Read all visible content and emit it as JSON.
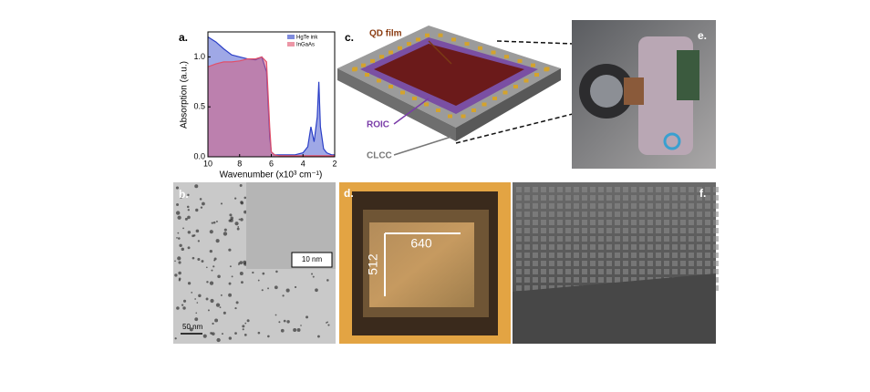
{
  "chart_data": {
    "type": "area",
    "x_label": "Wavenumber (x10³ cm⁻¹)",
    "y_label": "Absorption (a.u.)",
    "x": [
      10,
      9.5,
      9,
      8.5,
      8,
      7.5,
      7,
      6.6,
      6.3,
      6.1,
      6,
      5.8,
      5.5,
      5,
      4.5,
      4,
      3.7,
      3.5,
      3.3,
      3.1,
      3,
      2.9,
      2.7,
      2.5,
      2.2,
      2
    ],
    "series": [
      {
        "name": "HgTe ink",
        "color": "#2b3fc7",
        "values": [
          1.2,
          1.15,
          1.08,
          1.02,
          1.0,
          0.98,
          0.97,
          1.0,
          0.85,
          0.2,
          0.05,
          0.02,
          0.02,
          0.02,
          0.02,
          0.04,
          0.1,
          0.3,
          0.15,
          0.4,
          0.75,
          0.3,
          0.08,
          0.04,
          0.02,
          0.02
        ]
      },
      {
        "name": "InGaAs",
        "color": "#e0506a",
        "values": [
          0.9,
          0.93,
          0.95,
          0.95,
          0.96,
          0.98,
          0.98,
          1.0,
          0.95,
          0.3,
          0.05,
          0.02,
          0.01,
          0.01,
          0.01,
          0.01,
          0.01,
          0.01,
          0.01,
          0.01,
          0.01,
          0.01,
          0.01,
          0.01,
          0.01,
          0.01
        ]
      }
    ],
    "xlim": [
      10,
      2
    ],
    "xticks": [
      10,
      8,
      6,
      4,
      2
    ],
    "ylim": [
      0,
      1.25
    ],
    "yticks": [
      {
        "value": 0,
        "label": "0.0"
      },
      {
        "value": 0.5,
        "label": "0.5"
      },
      {
        "value": 1,
        "label": "1.0"
      }
    ],
    "legend": "upper right"
  },
  "panel_labels": [
    "a.",
    "b.",
    "c.",
    "d.",
    "e.",
    "f."
  ],
  "schematic": {
    "qd_film": "QD film",
    "roic": "ROIC",
    "clcc": "CLCC"
  },
  "tem": {
    "inset_scale": "10 nm",
    "scale": "50 nm"
  },
  "fpa": {
    "width": "640",
    "height": "512"
  }
}
